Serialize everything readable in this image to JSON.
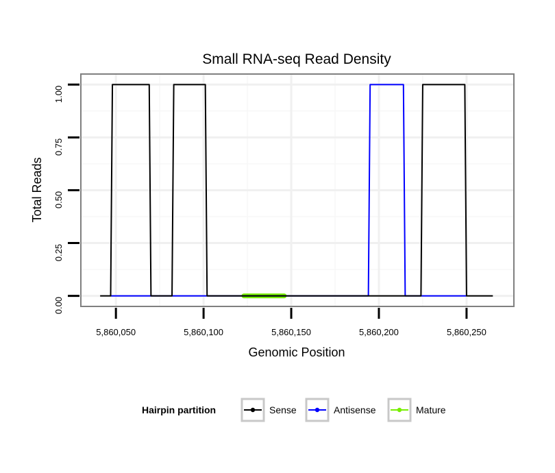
{
  "chart_data": {
    "type": "line",
    "title": "Small RNA-seq Read Density",
    "xlabel": "Genomic Position",
    "ylabel": "Total Reads",
    "xlim": [
      5860030,
      5860277
    ],
    "ylim": [
      -0.05,
      1.05
    ],
    "grid": true,
    "x_ticks": [
      5860050,
      5860100,
      5860150,
      5860200,
      5860250
    ],
    "x_tick_labels": [
      "5,860,050",
      "5,860,100",
      "5,860,150",
      "5,860,200",
      "5,860,250"
    ],
    "y_ticks": [
      0,
      0.25,
      0.5,
      0.75,
      1.0
    ],
    "y_tick_labels": [
      "0.00",
      "0.25",
      "0.50",
      "0.75",
      "1.00"
    ],
    "legend": {
      "title": "Hairpin partition",
      "position": "bottom",
      "entries": [
        "Sense",
        "Antisense",
        "Mature"
      ]
    },
    "series": [
      {
        "name": "Sense",
        "color": "#000000",
        "x": [
          5860041,
          5860047,
          5860048,
          5860069,
          5860070,
          5860082,
          5860083,
          5860101,
          5860102,
          5860224,
          5860225,
          5860249,
          5860250,
          5860265
        ],
        "values": [
          0,
          0,
          1,
          1,
          0,
          0,
          1,
          1,
          0,
          0,
          1,
          1,
          0,
          0
        ]
      },
      {
        "name": "Antisense",
        "color": "#0000ff",
        "x": [
          5860047,
          5860194,
          5860195,
          5860214,
          5860215,
          5860250
        ],
        "values": [
          0,
          0,
          1,
          1,
          0,
          0
        ]
      },
      {
        "name": "Mature",
        "color": "#77ee00",
        "x": [
          5860123,
          5860146
        ],
        "values": [
          0,
          0
        ]
      }
    ]
  }
}
